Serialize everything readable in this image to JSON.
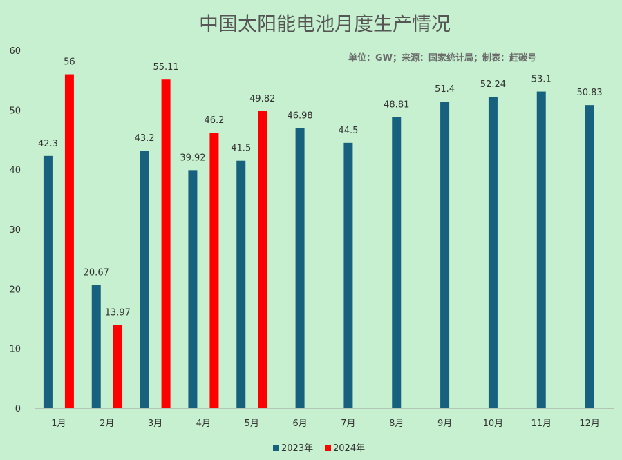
{
  "chart_data": {
    "type": "bar",
    "title": "中国太阳能电池月度生产情况",
    "subtitle": "单位：GW；来源：国家统计局；制表：赶碳号",
    "categories": [
      "1月",
      "2月",
      "3月",
      "4月",
      "5月",
      "6月",
      "7月",
      "8月",
      "9月",
      "10月",
      "11月",
      "12月"
    ],
    "series": [
      {
        "name": "2023年",
        "color": "#17607e",
        "values": [
          42.3,
          20.67,
          43.2,
          39.92,
          41.5,
          46.98,
          44.5,
          48.81,
          51.4,
          52.24,
          53.1,
          50.83
        ]
      },
      {
        "name": "2024年",
        "color": "#ff0000",
        "values": [
          56,
          13.97,
          55.11,
          46.2,
          49.82,
          null,
          null,
          null,
          null,
          null,
          null,
          null
        ]
      }
    ],
    "ylim": [
      0,
      60
    ],
    "yticks": [
      0,
      10,
      20,
      30,
      40,
      50,
      60
    ],
    "grid": false,
    "legend": "bottom-center"
  }
}
